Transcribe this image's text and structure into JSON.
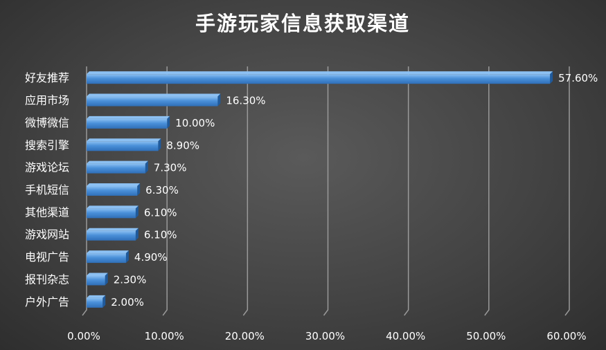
{
  "chart_data": {
    "type": "bar",
    "orientation": "horizontal",
    "title": "手游玩家信息获取渠道",
    "categories": [
      "好友推荐",
      "应用市场",
      "微博微信",
      "搜索引擎",
      "游戏论坛",
      "手机短信",
      "其他渠道",
      "游戏网站",
      "电视广告",
      "报刊杂志",
      "户外广告"
    ],
    "values": [
      57.6,
      16.3,
      10.0,
      8.9,
      7.3,
      6.3,
      6.1,
      6.1,
      4.9,
      2.3,
      2.0
    ],
    "value_labels": [
      "57.60%",
      "16.30%",
      "10.00%",
      "8.90%",
      "7.30%",
      "6.30%",
      "6.10%",
      "6.10%",
      "4.90%",
      "2.30%",
      "2.00%"
    ],
    "x_ticks": [
      0,
      10,
      20,
      30,
      40,
      50,
      60
    ],
    "x_tick_labels": [
      "0.00%",
      "10.00%",
      "20.00%",
      "30.00%",
      "40.00%",
      "50.00%",
      "60.00%"
    ],
    "xlim": [
      0,
      60
    ],
    "xlabel": "",
    "ylabel": "",
    "grid": true,
    "legend": "none",
    "colors": {
      "bar": "#4a90d9",
      "bar_top": "#8cc0f2",
      "bar_dark": "#1f5a9c",
      "grid": "#9a9a9a",
      "text": "#ffffff"
    }
  }
}
